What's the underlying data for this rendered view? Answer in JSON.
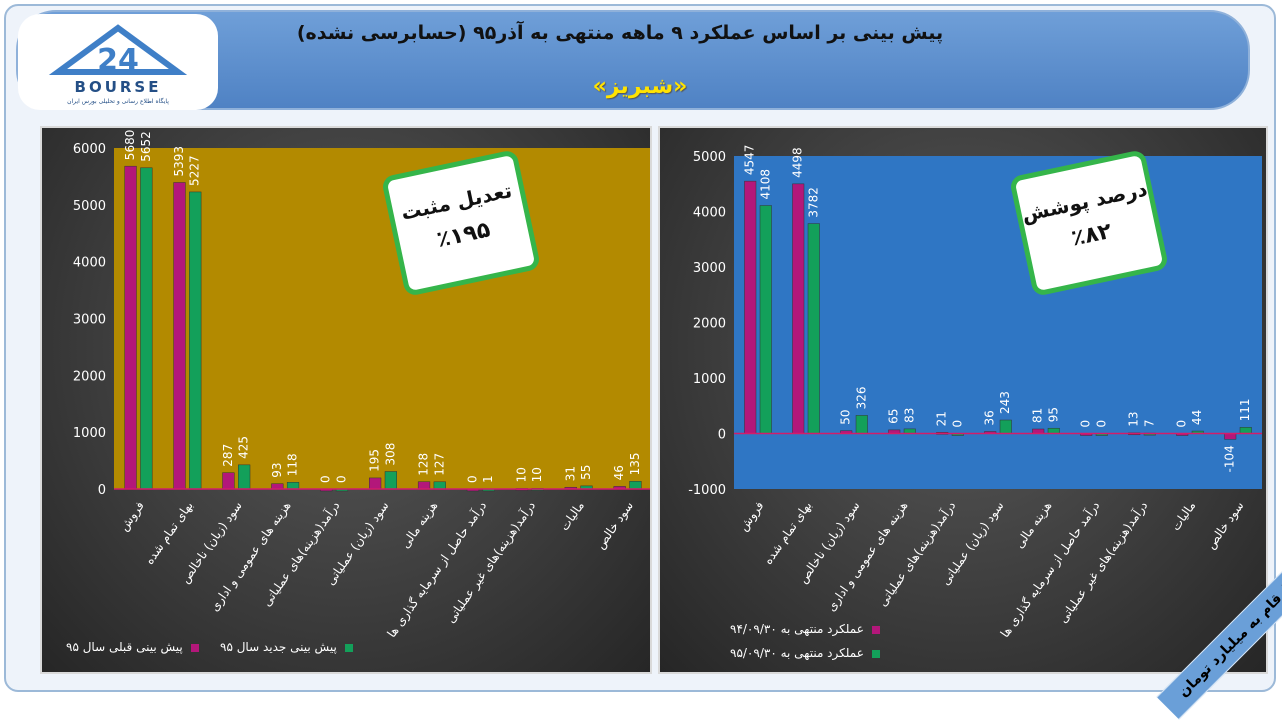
{
  "header": {
    "title": "پیش بینی بر اساس عملکرد ۹ ماهه منتهی به آذر۹۵ (حسابرسی نشده)",
    "subtitle": "«شبریز»",
    "logo_text": "BOURSE",
    "logo_number": "24",
    "logo_sub": "پایگاه اطلاع رسانی و تحلیلی بورس ایران"
  },
  "units_label": "ارقام به میلیارد تومان",
  "colors": {
    "series_a": "#b3177a",
    "series_b": "#13a05a",
    "left_bg": "#b38a00",
    "right_bg": "#2f76c4"
  },
  "left_callout": {
    "line1": "تعدیل مثبت",
    "line2": "٪۱۹۵"
  },
  "right_callout": {
    "line1": "درصد پوشش",
    "line2": "٪۸۲"
  },
  "chart_data": [
    {
      "type": "bar",
      "categories": [
        "فروش",
        "بهای تمام شده",
        "سود (زیان) ناخالص",
        "هزینه های عمومی و اداری",
        "درآمد(هزینه)های عملیاتی",
        "سود (زیان) عملیاتی",
        "هزینه مالی",
        "درآمد حاصل از سرمایه گذاری ها",
        "درآمد(هزینه)های غیر عملیاتی",
        "مالیات",
        "سود خالص"
      ],
      "series": [
        {
          "name": "پیش بینی قبلی سال ۹۵",
          "values": [
            5680,
            5393,
            287,
            93,
            0,
            195,
            128,
            0,
            10,
            31,
            46
          ]
        },
        {
          "name": "پیش بینی جدید سال ۹۵",
          "values": [
            5652,
            5227,
            425,
            118,
            0,
            308,
            127,
            1,
            10,
            55,
            135
          ]
        }
      ],
      "ylim": [
        0,
        6000
      ],
      "yticks": [
        0,
        1000,
        2000,
        3000,
        4000,
        5000,
        6000
      ],
      "legend": "bottom",
      "grid": false
    },
    {
      "type": "bar",
      "categories": [
        "فروش",
        "بهای تمام شده",
        "سود (زیان) ناخالص",
        "هزینه های عمومی و اداری",
        "درآمد(هزینه)های عملیاتی",
        "سود (زیان) عملیاتی",
        "هزینه مالی",
        "درآمد حاصل از سرمایه گذاری ها",
        "درآمد(هزینه)های غیر عملیاتی",
        "مالیات",
        "سود خالص"
      ],
      "series": [
        {
          "name": "عملکرد منتهی به ۹۴/۰۹/۳۰",
          "values": [
            4547,
            4498,
            50,
            65,
            21,
            36,
            81,
            0,
            13,
            0,
            -104
          ]
        },
        {
          "name": "عملکرد منتهی به ۹۵/۰۹/۳۰",
          "values": [
            4108,
            3782,
            326,
            83,
            0,
            243,
            95,
            0,
            7,
            44,
            111
          ]
        }
      ],
      "ylim": [
        -1000,
        5000
      ],
      "yticks": [
        -1000,
        0,
        1000,
        2000,
        3000,
        4000,
        5000
      ],
      "legend": "bottom",
      "grid": false
    }
  ]
}
